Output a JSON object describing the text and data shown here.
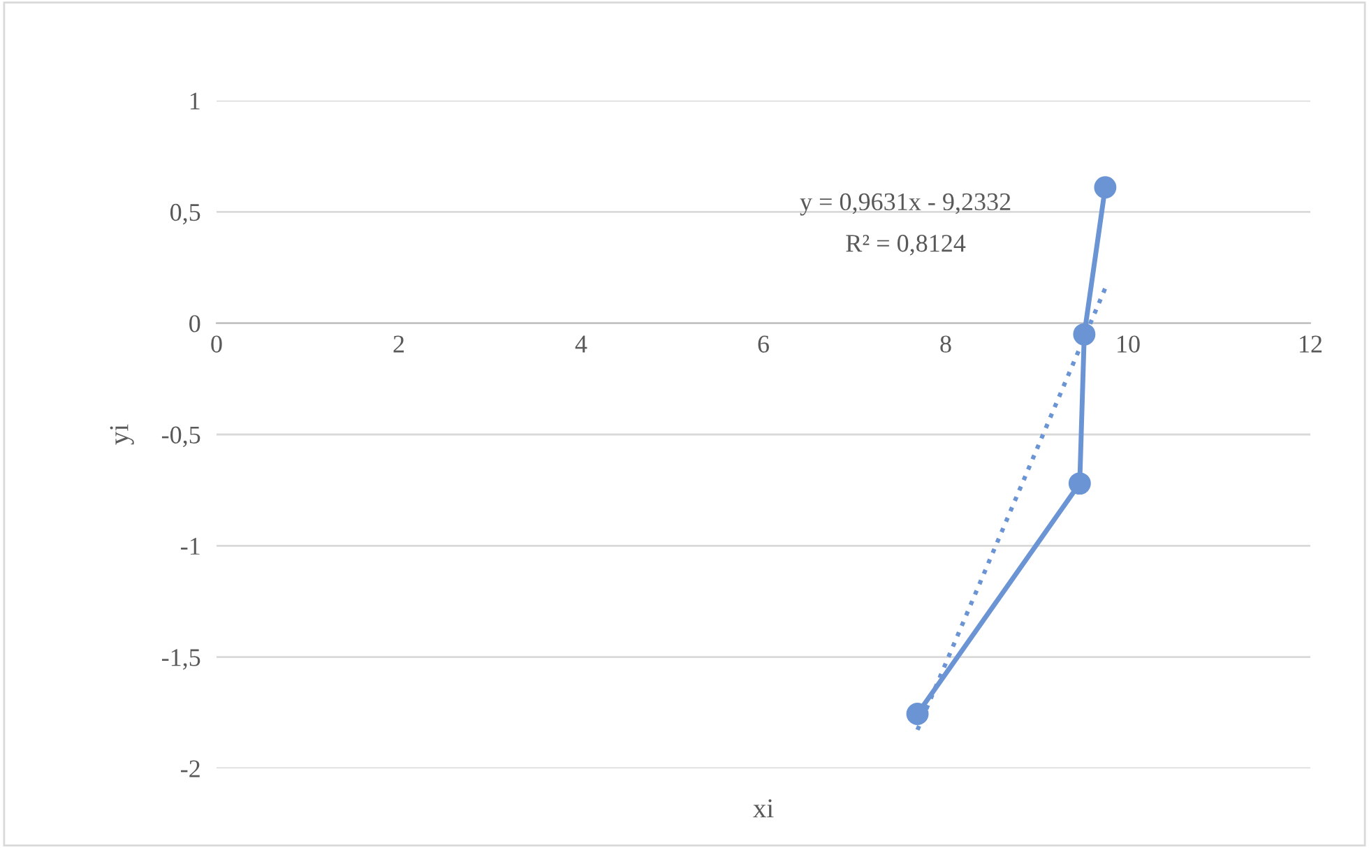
{
  "chart_data": {
    "type": "line",
    "xlabel": "xi",
    "ylabel": "yi",
    "series": [
      {
        "color": "#6b94d4",
        "x": [
          7.69,
          9.47,
          9.52,
          9.75
        ],
        "values": [
          -1.755,
          -0.72,
          -0.05,
          0.61
        ],
        "marker": "circle",
        "line_style": "solid"
      },
      {
        "type": "line",
        "color": "#6b94d4",
        "x": [
          7.69,
          9.75
        ],
        "values": [
          -1.827,
          0.157
        ],
        "marker": "none",
        "line_style": "dotted"
      }
    ],
    "annotations": [
      "y = 0,9631x - 9,2332",
      "R² = 0,8124"
    ],
    "xlim": [
      0,
      12
    ],
    "xticks": [
      0,
      2,
      4,
      6,
      8,
      10,
      12
    ],
    "ylim": [
      -2,
      1
    ],
    "yticks": [
      {
        "value": -2,
        "label": "-2"
      },
      {
        "value": -1.5,
        "label": "-1,5"
      },
      {
        "value": -1,
        "label": "-1"
      },
      {
        "value": -0.5,
        "label": "-0,5"
      },
      {
        "value": 0,
        "label": "0"
      },
      {
        "value": 0.5,
        "label": "0,5"
      },
      {
        "value": 1,
        "label": "1"
      }
    ],
    "grid": "y",
    "legend": false
  }
}
